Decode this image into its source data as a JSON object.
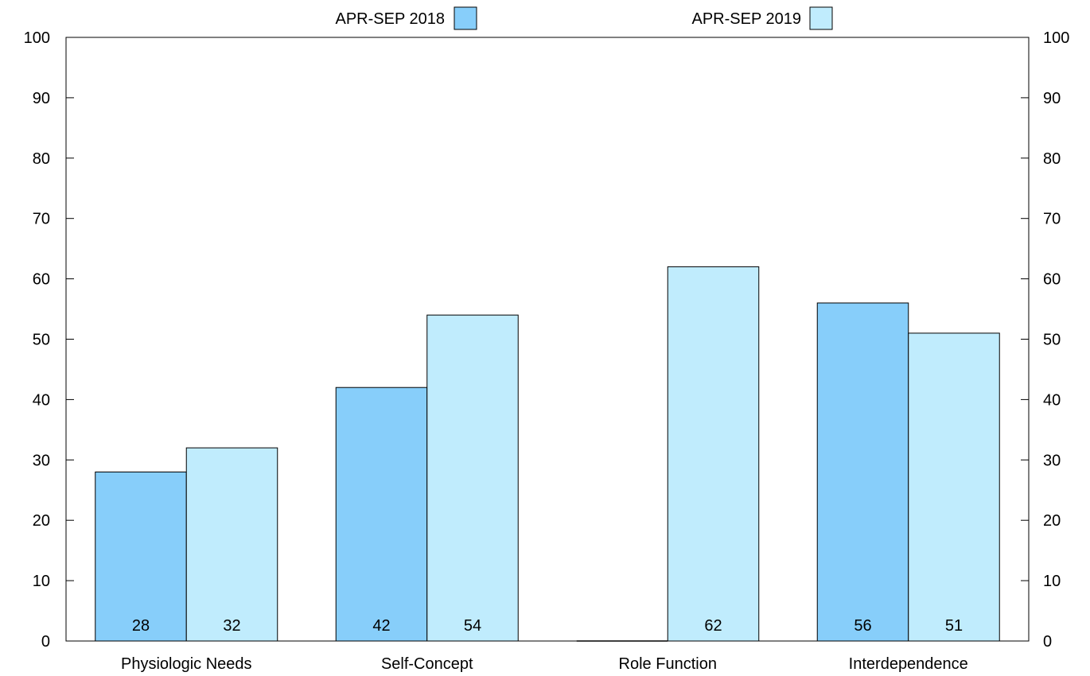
{
  "chart_data": {
    "type": "bar",
    "categories": [
      "Physiologic Needs",
      "Self-Concept",
      "Role Function",
      "Interdependence"
    ],
    "series": [
      {
        "name": "APR-SEP 2018",
        "values": [
          28,
          42,
          0,
          56
        ],
        "color": "#87cefa",
        "value_labels": [
          "28",
          "42",
          "",
          "56"
        ]
      },
      {
        "name": "APR-SEP 2019",
        "values": [
          32,
          54,
          62,
          51
        ],
        "color": "#c0ecfd",
        "value_labels": [
          "32",
          "54",
          "62",
          "51"
        ]
      }
    ],
    "ylim": [
      0,
      100
    ],
    "yticks": [
      0,
      10,
      20,
      30,
      40,
      50,
      60,
      70,
      80,
      90,
      100
    ],
    "right_axis_ticks": true,
    "legend_position": "top",
    "grid": false,
    "title": "",
    "xlabel": "",
    "ylabel": ""
  }
}
